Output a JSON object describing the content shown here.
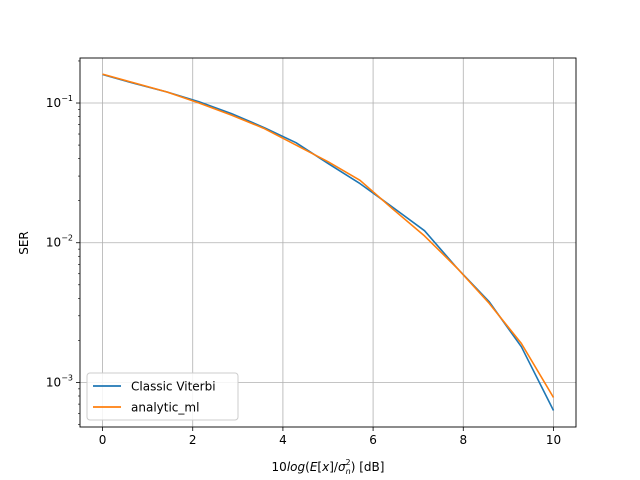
{
  "chart_data": {
    "type": "line",
    "title": "",
    "xlabel": {
      "prefix": "10",
      "func": "log",
      "E": "E",
      "x": "x",
      "sigma": "σ",
      "sub": "n",
      "sup": "2",
      "unit": " [dB]"
    },
    "ylabel": "SER",
    "xlim": [
      -0.5,
      10.5
    ],
    "ylim": [
      0.00048,
      0.21
    ],
    "yscale": "log",
    "grid": true,
    "legend": "lower left",
    "xticks": [
      0,
      2,
      4,
      6,
      8,
      10
    ],
    "xtick_labels": [
      "0",
      "2",
      "4",
      "6",
      "8",
      "10"
    ],
    "yticks": [
      0.001,
      0.01,
      0.1
    ],
    "ytick_labels": [
      {
        "base": "10",
        "exp": "−3"
      },
      {
        "base": "10",
        "exp": "−2"
      },
      {
        "base": "10",
        "exp": "−1"
      }
    ],
    "series": [
      {
        "name": "Classic Viterbi",
        "color": "#1f77b4",
        "x": [
          0,
          0.71,
          1.43,
          2.14,
          2.86,
          3.57,
          4.29,
          5.0,
          5.71,
          6.43,
          7.14,
          7.86,
          8.57,
          9.29,
          10.0
        ],
        "y": [
          0.16,
          0.138,
          0.12,
          0.102,
          0.084,
          0.067,
          0.052,
          0.037,
          0.0265,
          0.018,
          0.0122,
          0.0066,
          0.0038,
          0.0018,
          0.00063
        ]
      },
      {
        "name": "analytic_ml",
        "color": "#ff7f0e",
        "x": [
          0,
          0.71,
          1.43,
          2.14,
          2.86,
          3.57,
          4.29,
          5.0,
          5.71,
          6.43,
          7.14,
          7.86,
          8.57,
          9.29,
          10.0
        ],
        "y": [
          0.161,
          0.139,
          0.12,
          0.1,
          0.082,
          0.066,
          0.05,
          0.038,
          0.028,
          0.0175,
          0.0112,
          0.0066,
          0.0037,
          0.0019,
          0.00078
        ]
      }
    ]
  }
}
